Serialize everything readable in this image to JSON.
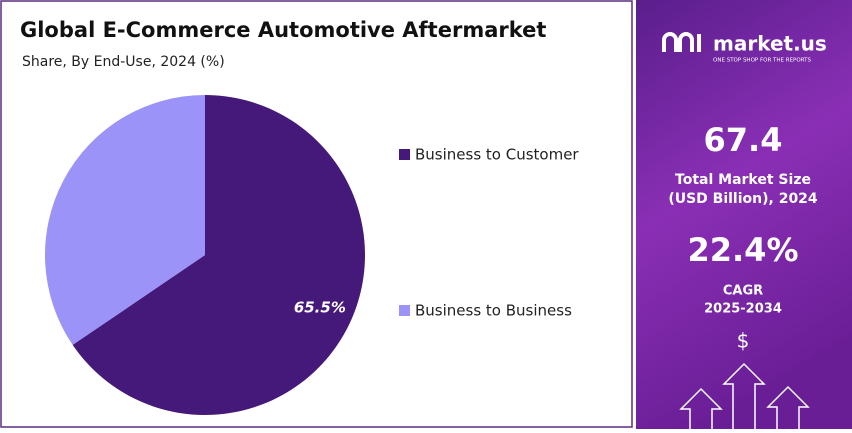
{
  "chart_data": {
    "type": "pie",
    "title": "Global E-Commerce Automotive Aftermarket",
    "subtitle": "Share, By End-Use, 2024 (%)",
    "categories": [
      "Business to Customer",
      "Business to Business"
    ],
    "values": [
      65.5,
      34.5
    ],
    "value_labels": [
      "65.5%",
      null
    ],
    "colors": [
      "#45197a",
      "#9b93f7"
    ]
  },
  "sidebar": {
    "brand": "market.us",
    "tagline": "ONE STOP SHOP FOR THE REPORTS",
    "market_size": "67.4",
    "market_size_label": [
      "Total Market Size",
      "(USD Billion), 2024"
    ],
    "cagr": "22.4%",
    "cagr_label": [
      "CAGR",
      "2025-2034"
    ],
    "currency": "$"
  }
}
